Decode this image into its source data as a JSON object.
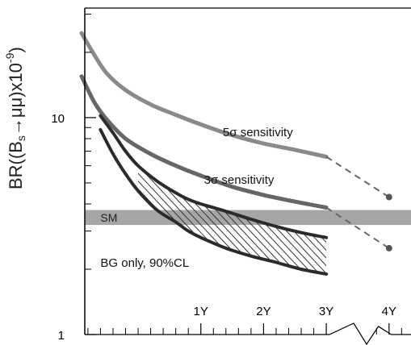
{
  "chart_data": {
    "type": "line",
    "title": "",
    "ylabel": {
      "prefix": "BR((B",
      "sub": "s",
      "mid": "→μμ)x10",
      "sup": "-9",
      "suffix": ")"
    },
    "xlabel": "",
    "yscale": "log",
    "ylim": [
      1,
      32
    ],
    "xlim": [
      -0.85,
      4.35
    ],
    "y_tick_labels": [
      {
        "value": 1,
        "label": "1"
      },
      {
        "value": 10,
        "label": "10"
      }
    ],
    "y_minor_ticks": [
      2,
      3,
      4,
      5,
      6,
      7,
      8,
      9,
      20,
      30
    ],
    "x_tick_labels": [
      {
        "x": 1,
        "label": "1Y"
      },
      {
        "x": 2,
        "label": "2Y"
      },
      {
        "x": 3,
        "label": "3Y"
      },
      {
        "x": 4,
        "label": "4Y"
      }
    ],
    "x_minor_ticks": [
      -0.8,
      -0.6,
      -0.4,
      -0.2,
      0,
      0.2,
      0.4,
      0.6,
      0.8,
      1.2,
      1.4,
      1.6,
      1.8,
      2.2,
      2.4,
      2.6,
      2.8,
      3.2,
      3.4,
      3.6,
      3.8,
      4.2
    ],
    "sm_band": {
      "label": "SM",
      "ymin": 3.2,
      "ymax": 3.75,
      "color": "#a6a6a6"
    },
    "series": [
      {
        "key": "five",
        "label": "5σ sensitivity",
        "color": "#8a8a8a",
        "width": 5,
        "x": [
          -0.9,
          -0.7,
          -0.5,
          -0.2,
          0.2,
          0.6,
          1.0,
          1.5,
          2.0,
          2.5,
          3.0
        ],
        "y": [
          24.5,
          19.5,
          16.0,
          13.4,
          11.5,
          10.3,
          9.3,
          8.3,
          7.6,
          7.1,
          6.6
        ],
        "proj": {
          "x": [
            3.0,
            4.0
          ],
          "y": [
            6.6,
            4.3
          ]
        }
      },
      {
        "key": "three",
        "label": "3σ sensitivity",
        "color": "#666666",
        "width": 5,
        "x": [
          -0.9,
          -0.7,
          -0.5,
          -0.2,
          0.2,
          0.6,
          1.0,
          1.5,
          2.0,
          2.5,
          3.0
        ],
        "y": [
          15.5,
          11.8,
          9.8,
          8.0,
          6.8,
          6.0,
          5.4,
          4.8,
          4.4,
          4.1,
          3.85
        ],
        "proj": {
          "x": [
            3.0,
            4.0
          ],
          "y": [
            3.85,
            2.5
          ]
        }
      },
      {
        "key": "bg_upper",
        "label": "",
        "color": "#2b2b2b",
        "width": 4,
        "x": [
          -0.6,
          -0.4,
          -0.2,
          0.0,
          0.3,
          0.6,
          0.8,
          1.0,
          1.4,
          1.8,
          2.2,
          2.6,
          3.0
        ],
        "y": [
          10.2,
          8.5,
          7.0,
          6.0,
          5.1,
          4.5,
          4.2,
          4.0,
          3.7,
          3.4,
          3.15,
          2.95,
          2.8
        ]
      },
      {
        "key": "bg_lower",
        "label": "",
        "color": "#2b2b2b",
        "width": 4,
        "x": [
          -0.6,
          -0.4,
          -0.2,
          0.0,
          0.3,
          0.6,
          0.8,
          1.0,
          1.4,
          1.8,
          2.2,
          2.6,
          3.0
        ],
        "y": [
          8.8,
          6.8,
          5.5,
          4.6,
          3.75,
          3.3,
          3.0,
          2.8,
          2.5,
          2.3,
          2.15,
          2.0,
          1.9
        ]
      }
    ],
    "hatch_between": [
      "bg_upper",
      "bg_lower"
    ],
    "hatch_xrange": [
      0.0,
      3.0
    ],
    "annotations": [
      {
        "text": "5σ sensitivity",
        "x": 1.35,
        "y": 8.2
      },
      {
        "text": "3σ sensitivity",
        "x": 1.05,
        "y": 4.95
      },
      {
        "text": "BG only, 90%CL",
        "x": -0.6,
        "y": 2.05
      }
    ]
  }
}
